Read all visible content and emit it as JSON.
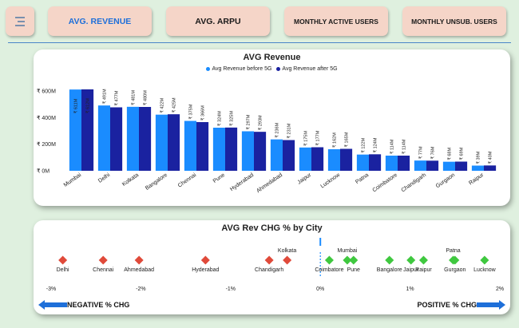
{
  "nav": {
    "menu_icon": "hamburger-icon",
    "tabs": [
      {
        "label": "AVG. REVENUE",
        "active": true
      },
      {
        "label": "AVG. ARPU",
        "active": false
      },
      {
        "label": "MONTHLY ACTIVE USERS",
        "active": false
      },
      {
        "label": "MONTHLY UNSUB. USERS",
        "active": false
      }
    ]
  },
  "colors": {
    "before": "#1a8cff",
    "after": "#1a22a0",
    "negative": "#e04a3a",
    "positive": "#3fc83f",
    "accent": "#1e6fd9"
  },
  "revenue_chart": {
    "title": "AVG Revenue",
    "legend": [
      "Avg Revenue before 5G",
      "Avg Revenue after 5G"
    ],
    "y_ticks": [
      "₹ 0M",
      "₹ 200M",
      "₹ 400M",
      "₹ 600M"
    ]
  },
  "chg_chart": {
    "title": "AVG Rev CHG % by City",
    "x_ticks": [
      "-3%",
      "-2%",
      "-1%",
      "0%",
      "1%",
      "2%"
    ],
    "negative_label": "NEGATIVE % CHG",
    "positive_label": "POSITIVE % CHG"
  },
  "chart_data": [
    {
      "type": "bar",
      "title": "AVG Revenue",
      "categories": [
        "Mumbai",
        "Delhi",
        "Kolkata",
        "Bangalore",
        "Chennai",
        "Pune",
        "Hyderabad",
        "Ahmedabad",
        "Jaipur",
        "Lucknow",
        "Patna",
        "Coimbatore",
        "Chandigarh",
        "Gurgaon",
        "Raipur"
      ],
      "series": [
        {
          "name": "Avg Revenue before 5G",
          "values": [
            611,
            491,
            481,
            422,
            375,
            324,
            297,
            236,
            175,
            162,
            122,
            114,
            77,
            68,
            39
          ],
          "labels": [
            "₹ 611M",
            "₹ 491M",
            "₹ 481M",
            "₹ 422M",
            "₹ 375M",
            "₹ 324M",
            "₹ 297M",
            "₹ 236M",
            "₹ 175M",
            "₹ 162M",
            "₹ 122M",
            "₹ 114M",
            "₹ 77M",
            "₹ 68M",
            "₹ 39M"
          ]
        },
        {
          "name": "Avg Revenue after 5G",
          "values": [
            612,
            477,
            480,
            425,
            366,
            325,
            293,
            231,
            177,
            165,
            124,
            114,
            76,
            69,
            40
          ],
          "labels": [
            "₹ 612M",
            "₹ 477M",
            "₹ 480M",
            "₹ 425M",
            "₹ 366M",
            "₹ 325M",
            "₹ 293M",
            "₹ 231M",
            "₹ 177M",
            "₹ 165M",
            "₹ 124M",
            "₹ 114M",
            "₹ 76M",
            "₹ 69M",
            "₹ 40M"
          ]
        }
      ],
      "ylim": [
        0,
        600
      ],
      "legend_position": "top"
    },
    {
      "type": "scatter",
      "title": "AVG Rev CHG % by City",
      "xlim": [
        -3,
        2
      ],
      "points": [
        {
          "city": "Delhi",
          "x": -2.87,
          "label_pos": "below"
        },
        {
          "city": "Chennai",
          "x": -2.42,
          "label_pos": "below"
        },
        {
          "city": "Ahmedabad",
          "x": -2.02,
          "label_pos": "below"
        },
        {
          "city": "Hyderabad",
          "x": -1.28,
          "label_pos": "below"
        },
        {
          "city": "Chandigarh",
          "x": -0.57,
          "label_pos": "below"
        },
        {
          "city": "Kolkata",
          "x": -0.37,
          "label_pos": "above"
        },
        {
          "city": "Coimbatore",
          "x": 0.1,
          "label_pos": "below"
        },
        {
          "city": "Mumbai",
          "x": 0.3,
          "label_pos": "above"
        },
        {
          "city": "Pune",
          "x": 0.37,
          "label_pos": "below"
        },
        {
          "city": "Bangalore",
          "x": 0.77,
          "label_pos": "below"
        },
        {
          "city": "Jaipur",
          "x": 1.01,
          "label_pos": "below"
        },
        {
          "city": "Raipur",
          "x": 1.15,
          "label_pos": "below"
        },
        {
          "city": "Gurgaon",
          "x": 1.5,
          "label_pos": "below"
        },
        {
          "city": "Patna",
          "x": 1.48,
          "label_pos": "above"
        },
        {
          "city": "Lucknow",
          "x": 1.83,
          "label_pos": "below"
        }
      ]
    }
  ]
}
